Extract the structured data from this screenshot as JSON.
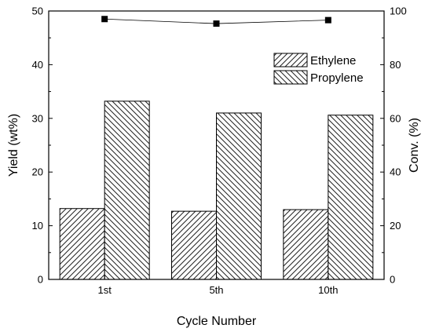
{
  "chart_data": {
    "type": "bar",
    "categories": [
      "1st",
      "5th",
      "10th"
    ],
    "series": [
      {
        "name": "Ethylene",
        "values": [
          13.2,
          12.7,
          13.0
        ],
        "hatch": "forward"
      },
      {
        "name": "Propylene",
        "values": [
          33.2,
          31.0,
          30.6
        ],
        "hatch": "backward"
      }
    ],
    "secondary_series": {
      "type": "line",
      "marker": "square",
      "values": [
        97.0,
        95.3,
        96.6
      ]
    },
    "xlabel": "Cycle Number",
    "ylabel": "Yield (wt%)",
    "y2label": "Conv. (%)",
    "ylim": [
      0,
      50
    ],
    "y2lim": [
      0,
      100
    ],
    "yticks": [
      "0",
      "10",
      "20",
      "30",
      "40",
      "50"
    ],
    "y2ticks": [
      "0",
      "20",
      "40",
      "60",
      "80",
      "100"
    ],
    "grid": false,
    "legend_placement": "top-right"
  }
}
